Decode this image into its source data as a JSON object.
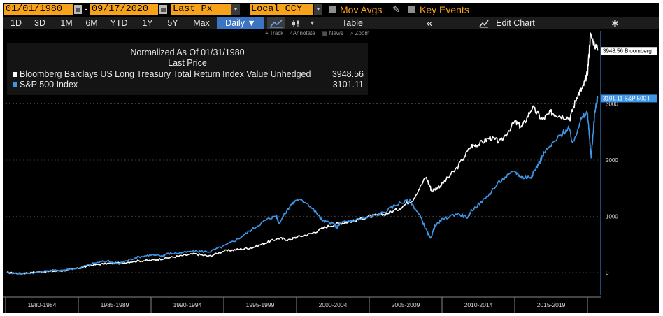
{
  "toolbar": {
    "start_date": "01/01/1980",
    "dash": "-",
    "end_date": "09/17/2020",
    "price_field": "Last Px",
    "currency": "Local CCY",
    "mov_avgs": "Mov Avgs",
    "key_events": "Key Events"
  },
  "tabs": [
    {
      "label": "1D"
    },
    {
      "label": "3D"
    },
    {
      "label": "1M"
    },
    {
      "label": "6M"
    },
    {
      "label": "YTD"
    },
    {
      "label": "1Y"
    },
    {
      "label": "5Y"
    },
    {
      "label": "Max"
    },
    {
      "label": "Daily ▼"
    }
  ],
  "table_label": "Table",
  "collapse_label": "«",
  "edit_chart_label": "Edit Chart",
  "tools": {
    "track": "Track",
    "annotate": "Annotate",
    "news": "News",
    "zoom": "Zoom"
  },
  "legend": {
    "line1": "Normalized As Of 01/31/1980",
    "line2": "Last Price",
    "series1_name": "Bloomberg Barclays US Long Treasury Total Return Index Value Unhedged",
    "series1_value": "3948.56",
    "series2_name": "S&P 500 Index",
    "series2_value": "3101.11"
  },
  "tags": {
    "series1": "3948.56 Bloomberg",
    "series2": "3101.11 S&P 500 I"
  },
  "colors": {
    "bg": "#000000",
    "series1": "#ffffff",
    "series2": "#3f95e6",
    "accent": "#f7a21b"
  },
  "chart_data": {
    "type": "line",
    "xlim": [
      1980.0,
      2020.72
    ],
    "ylim": [
      -400,
      4300
    ],
    "yticks": [
      0,
      1000,
      2000,
      3000
    ],
    "x_periods": [
      "1980-1984",
      "1985-1989",
      "1990-1994",
      "1995-1999",
      "2000-2004",
      "2005-2009",
      "2010-2014",
      "2015-2019"
    ],
    "series": [
      {
        "name": "Bloomberg Barclays US Long Treasury Total Return Index Value Unhedged",
        "color": "#ffffff",
        "x": [
          1980.1,
          1981.0,
          1982.0,
          1983.0,
          1984.0,
          1985.0,
          1986.0,
          1987.0,
          1988.0,
          1989.0,
          1990.0,
          1991.0,
          1992.0,
          1993.0,
          1994.0,
          1995.0,
          1996.0,
          1997.0,
          1998.0,
          1998.8,
          1999.5,
          2000.0,
          2001.0,
          2002.0,
          2003.0,
          2004.0,
          2005.0,
          2006.0,
          2007.0,
          2008.0,
          2008.9,
          2009.3,
          2010.0,
          2011.0,
          2012.0,
          2012.5,
          2013.3,
          2014.0,
          2015.0,
          2015.5,
          2016.2,
          2016.9,
          2017.5,
          2018.0,
          2018.8,
          2019.3,
          2019.7,
          2020.0,
          2020.2,
          2020.7
        ],
        "y": [
          0,
          -20,
          5,
          20,
          35,
          75,
          135,
          160,
          170,
          205,
          215,
          255,
          295,
          330,
          290,
          380,
          410,
          445,
          540,
          610,
          580,
          630,
          690,
          810,
          880,
          920,
          1000,
          1030,
          1130,
          1300,
          1700,
          1450,
          1570,
          1850,
          2250,
          2280,
          2400,
          2320,
          2680,
          2580,
          2940,
          2720,
          2850,
          2800,
          2750,
          3150,
          3300,
          3550,
          4220,
          3948.56
        ]
      },
      {
        "name": "S&P 500 Index",
        "color": "#3f95e6",
        "x": [
          1980.1,
          1981.0,
          1982.0,
          1983.0,
          1984.0,
          1985.0,
          1986.0,
          1987.0,
          1987.8,
          1988.0,
          1989.0,
          1990.0,
          1990.8,
          1991.0,
          1992.0,
          1993.0,
          1994.0,
          1995.0,
          1996.0,
          1997.0,
          1998.0,
          1998.6,
          1998.8,
          1999.5,
          2000.0,
          2000.7,
          2001.5,
          2001.8,
          2002.5,
          2002.8,
          2003.0,
          2004.0,
          2005.0,
          2006.0,
          2007.0,
          2007.8,
          2008.5,
          2009.0,
          2009.2,
          2009.5,
          2010.0,
          2011.0,
          2011.8,
          2012.0,
          2013.0,
          2014.0,
          2015.0,
          2015.5,
          2016.1,
          2016.5,
          2017.0,
          2018.0,
          2018.7,
          2019.0,
          2019.5,
          2020.0,
          2020.15,
          2020.25,
          2020.5,
          2020.7
        ],
        "y": [
          0,
          -20,
          -5,
          35,
          45,
          80,
          160,
          210,
          150,
          180,
          270,
          315,
          290,
          330,
          350,
          380,
          370,
          470,
          600,
          780,
          950,
          1010,
          880,
          1170,
          1300,
          1250,
          1020,
          920,
          870,
          800,
          880,
          940,
          980,
          1070,
          1230,
          1280,
          1000,
          710,
          600,
          820,
          940,
          1050,
          980,
          1100,
          1320,
          1630,
          1800,
          1690,
          1700,
          1870,
          2120,
          2400,
          2580,
          2290,
          2700,
          2850,
          2350,
          2050,
          2850,
          3101.11
        ]
      }
    ]
  }
}
